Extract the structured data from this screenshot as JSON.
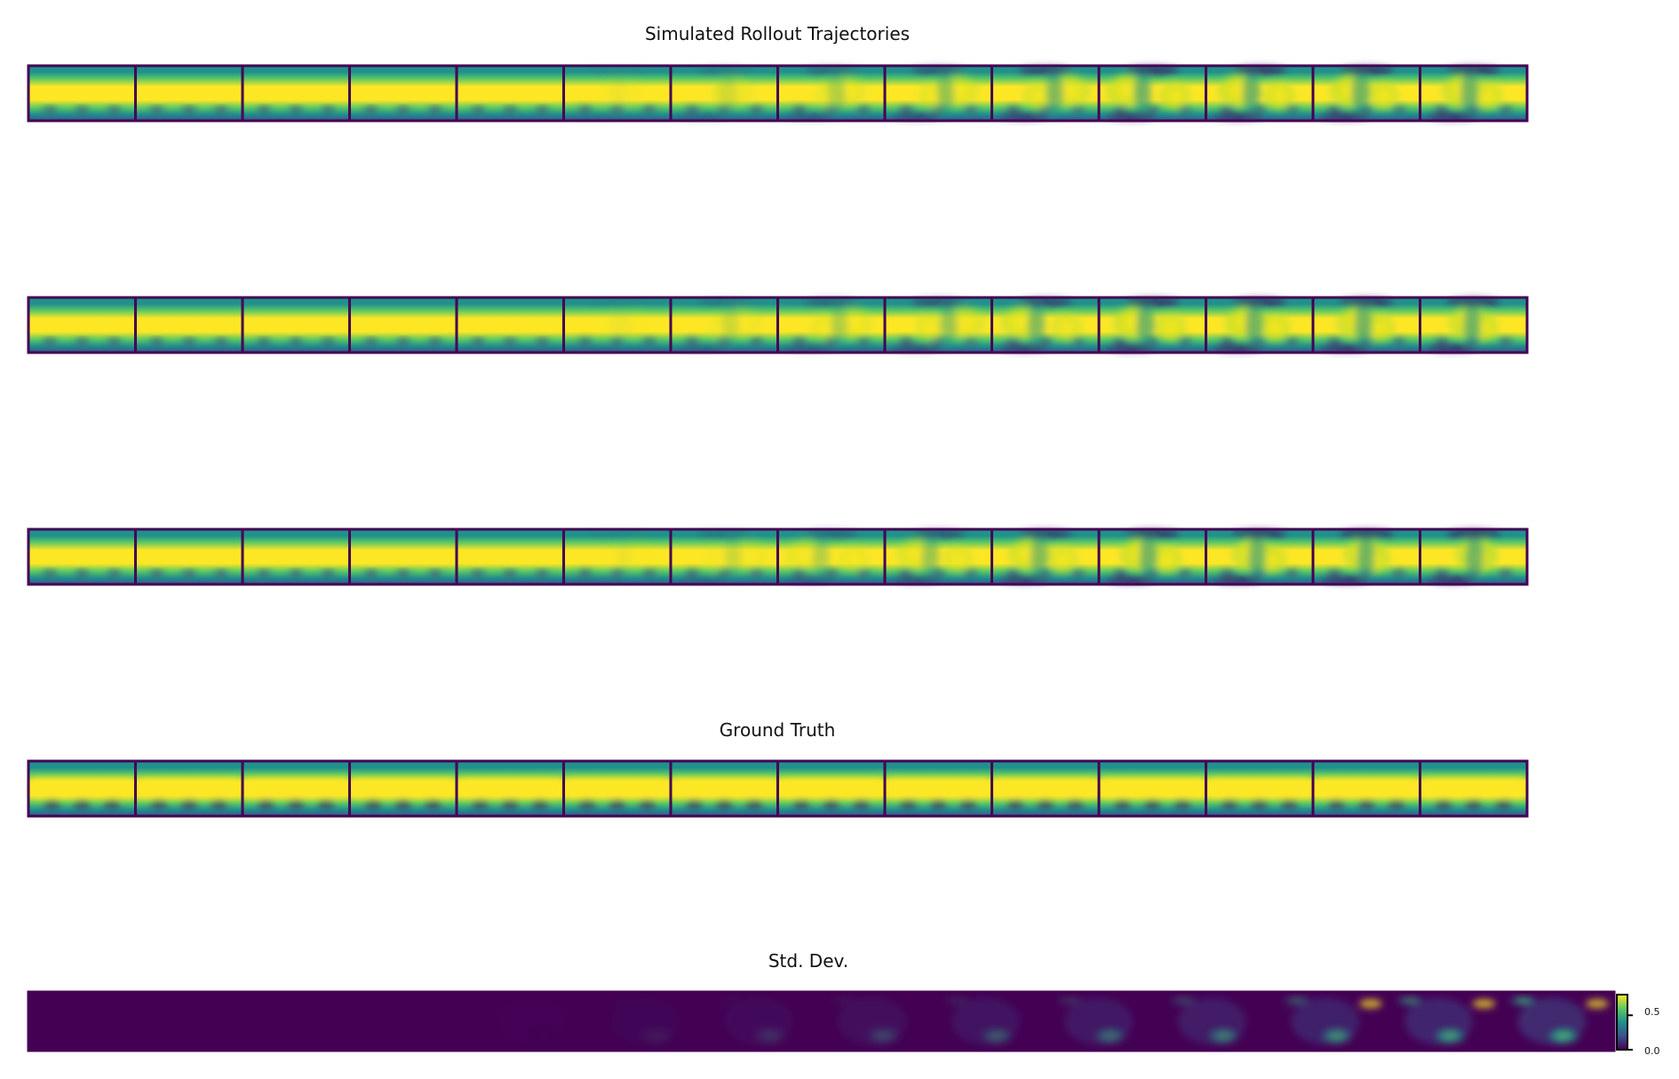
{
  "titles": {
    "rollout": "Simulated Rollout Trajectories",
    "truth": "Ground Truth",
    "std": "Std. Dev."
  },
  "frames_per_row": 14,
  "rollout_rows": 3,
  "colormap": [
    "#440154",
    "#3b528b",
    "#21918c",
    "#5ec962",
    "#fde725"
  ],
  "border_color": "#440154",
  "colorbar": {
    "ticks": [
      {
        "label": "0.5",
        "value": 0.5
      },
      {
        "label": "0.0",
        "value": 0.0
      }
    ],
    "min": 0.0,
    "max": 0.8
  }
}
